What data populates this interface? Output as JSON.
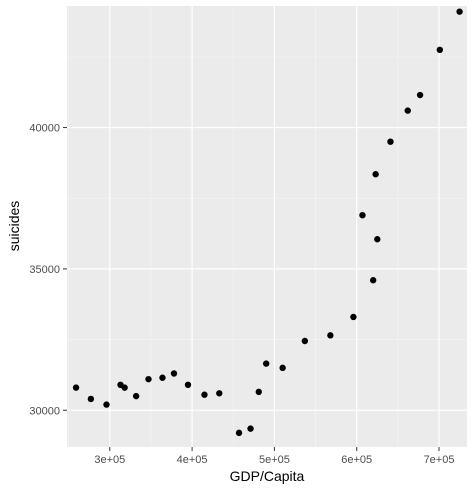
{
  "chart_data": {
    "type": "scatter",
    "title": "",
    "xlabel": "GDP/Capita",
    "ylabel": "suicides",
    "xlim": [
      248000,
      734000
    ],
    "ylim": [
      28700,
      44300
    ],
    "x_ticks": [
      300000,
      400000,
      500000,
      600000,
      700000
    ],
    "x_tick_labels": [
      "3e+05",
      "4e+05",
      "5e+05",
      "6e+05",
      "7e+05"
    ],
    "x_minor_ticks": [
      250000,
      350000,
      450000,
      550000,
      650000
    ],
    "y_ticks": [
      30000,
      35000,
      40000
    ],
    "y_tick_labels": [
      "30000",
      "35000",
      "40000"
    ],
    "y_minor_ticks": [
      32500,
      37500,
      42500
    ],
    "grid": true,
    "legend": "none",
    "colors": {
      "panel_background": "#ebebeb",
      "grid_major": "#ffffff",
      "grid_minor": "#f5f5f5",
      "point": "#000000",
      "tick_label": "#4d4d4d",
      "axis_title": "#000000",
      "tick_mark": "#333333"
    },
    "points": [
      {
        "x": 259000,
        "y": 30800
      },
      {
        "x": 277000,
        "y": 30400
      },
      {
        "x": 296000,
        "y": 30200
      },
      {
        "x": 313000,
        "y": 30900
      },
      {
        "x": 318000,
        "y": 30800
      },
      {
        "x": 332000,
        "y": 30500
      },
      {
        "x": 347000,
        "y": 31100
      },
      {
        "x": 364000,
        "y": 31150
      },
      {
        "x": 378000,
        "y": 31300
      },
      {
        "x": 395000,
        "y": 30900
      },
      {
        "x": 415000,
        "y": 30550
      },
      {
        "x": 433000,
        "y": 30600
      },
      {
        "x": 457000,
        "y": 29200
      },
      {
        "x": 471000,
        "y": 29350
      },
      {
        "x": 481000,
        "y": 30650
      },
      {
        "x": 490000,
        "y": 31650
      },
      {
        "x": 510000,
        "y": 31500
      },
      {
        "x": 537000,
        "y": 32450
      },
      {
        "x": 568000,
        "y": 32650
      },
      {
        "x": 596000,
        "y": 33300
      },
      {
        "x": 607000,
        "y": 36900
      },
      {
        "x": 620000,
        "y": 34600
      },
      {
        "x": 623000,
        "y": 38350
      },
      {
        "x": 625000,
        "y": 36050
      },
      {
        "x": 641000,
        "y": 39500
      },
      {
        "x": 662000,
        "y": 40600
      },
      {
        "x": 677000,
        "y": 41150
      },
      {
        "x": 701000,
        "y": 42750
      },
      {
        "x": 725000,
        "y": 44100
      }
    ]
  }
}
